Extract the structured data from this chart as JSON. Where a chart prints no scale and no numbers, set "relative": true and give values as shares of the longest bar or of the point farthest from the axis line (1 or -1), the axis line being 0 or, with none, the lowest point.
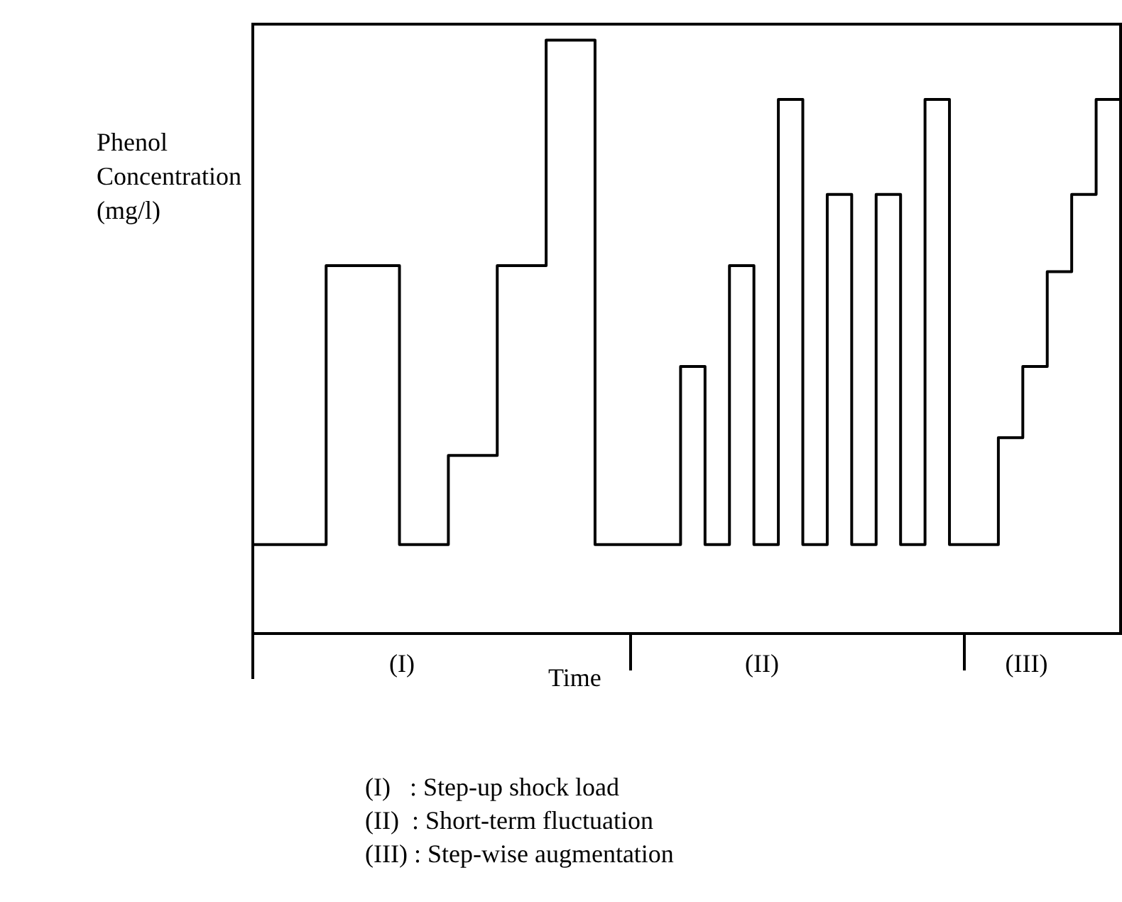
{
  "chart_data": {
    "type": "step",
    "relative": true,
    "ylabel": "Phenol\nConcentration\n(mg/l)",
    "xlabel": "Time",
    "color": "#000000",
    "tick_labels": false,
    "categories": [
      null,
      null,
      null,
      null,
      null,
      null,
      null,
      null,
      null,
      null,
      null,
      null,
      null,
      null,
      null,
      null,
      null,
      null,
      null,
      null,
      null,
      null,
      null,
      null,
      null,
      null,
      null,
      null,
      null,
      null,
      null,
      null,
      null,
      null,
      null,
      null,
      null,
      null,
      null,
      null,
      null,
      null,
      null,
      null,
      null,
      null,
      null,
      null,
      null,
      null,
      null,
      null,
      null,
      null,
      null,
      null,
      null,
      null,
      null,
      null,
      null,
      null,
      null,
      null,
      null,
      null,
      null,
      null,
      null,
      null,
      null,
      null
    ],
    "values": [
      0.15,
      0.15,
      0.15,
      0.15,
      0.15,
      0.15,
      0.62,
      0.62,
      0.62,
      0.62,
      0.62,
      0.62,
      0.15,
      0.15,
      0.15,
      0.15,
      0.3,
      0.3,
      0.3,
      0.3,
      0.62,
      0.62,
      0.62,
      0.62,
      1,
      1,
      1,
      1,
      0.15,
      0.15,
      0.15,
      0.15,
      0.15,
      0.15,
      0.15,
      0.45,
      0.45,
      0.15,
      0.15,
      0.62,
      0.62,
      0.15,
      0.15,
      0.9,
      0.9,
      0.15,
      0.15,
      0.74,
      0.74,
      0.15,
      0.15,
      0.74,
      0.74,
      0.15,
      0.15,
      0.9,
      0.9,
      0.15,
      0.15,
      0.15,
      0.15,
      0.33,
      0.33,
      0.45,
      0.45,
      0.61,
      0.61,
      0.74,
      0.74,
      0.9,
      0.9,
      0.9
    ],
    "annotations": [
      "(I)",
      "(II)",
      "(III)",
      "(I)   : Step-up shock load",
      "(II)  : Short-term fluctuation",
      "(III) : Step-wise augmentation"
    ]
  }
}
